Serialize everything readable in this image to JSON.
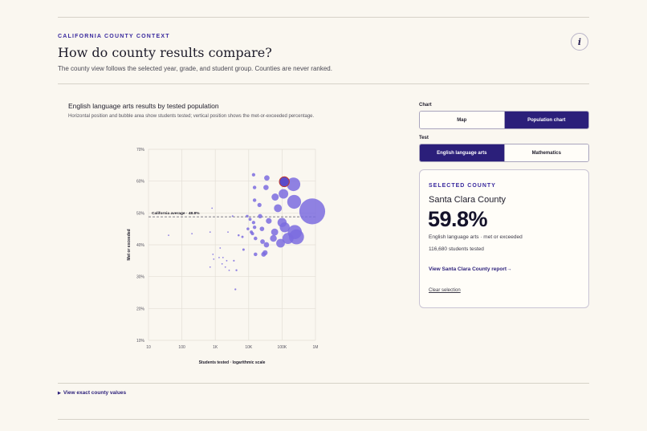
{
  "header": {
    "eyebrow": "CALIFORNIA COUNTY CONTEXT",
    "title": "How do county results compare?",
    "subtitle": "The county view follows the selected year, grade, and student group. Counties are never ranked.",
    "info_label": "i"
  },
  "chart_panel": {
    "title": "English language arts results by tested population",
    "description": "Horizontal position and bubble area show students tested; vertical position shows the met-or-exceeded percentage."
  },
  "controls": {
    "chart_label": "Chart",
    "chart_options": [
      "Map",
      "Population chart"
    ],
    "chart_selected": "Population chart",
    "test_label": "Test",
    "test_options": [
      "English language arts",
      "Mathematics"
    ],
    "test_selected": "English language arts"
  },
  "selected": {
    "eyebrow": "SELECTED COUNTY",
    "county": "Santa Clara County",
    "percent": "59.8%",
    "metric": "English language arts · met or exceeded",
    "tested": "116,680 students tested",
    "link": "View Santa Clara County report→",
    "clear": "Clear selection"
  },
  "details_toggle": "View exact county values",
  "colors": {
    "accent": "#2b1f7a",
    "bubble": "#7b6cdf",
    "background": "#faf7f0"
  },
  "chart_data": {
    "type": "scatter",
    "xlabel": "Students tested · logarithmic scale",
    "ylabel": "Met or exceeded",
    "x_scale": "log",
    "xlim": [
      10,
      1000000
    ],
    "ylim": [
      10,
      70
    ],
    "x_ticks": [
      "10",
      "100",
      "1K",
      "10K",
      "100K",
      "1M"
    ],
    "x_tick_values": [
      10,
      100,
      1000,
      10000,
      100000,
      1000000
    ],
    "y_ticks": [
      "10%",
      "20%",
      "30%",
      "40%",
      "50%",
      "60%",
      "70%"
    ],
    "y_tick_values": [
      10,
      20,
      30,
      40,
      50,
      60,
      70
    ],
    "grid": true,
    "average": {
      "value": 48.8,
      "label": "California average · 48.8%"
    },
    "selected_point": {
      "x": 116680,
      "y": 59.8
    },
    "points": [
      {
        "x": 40,
        "y": 43
      },
      {
        "x": 200,
        "y": 43.5
      },
      {
        "x": 700,
        "y": 44
      },
      {
        "x": 800,
        "y": 51.5
      },
      {
        "x": 700,
        "y": 33
      },
      {
        "x": 850,
        "y": 37
      },
      {
        "x": 900,
        "y": 35.5
      },
      {
        "x": 1400,
        "y": 39
      },
      {
        "x": 1300,
        "y": 36
      },
      {
        "x": 1700,
        "y": 36
      },
      {
        "x": 1600,
        "y": 34
      },
      {
        "x": 2000,
        "y": 33
      },
      {
        "x": 2200,
        "y": 35
      },
      {
        "x": 2600,
        "y": 32
      },
      {
        "x": 2400,
        "y": 44
      },
      {
        "x": 3300,
        "y": 49
      },
      {
        "x": 3600,
        "y": 35
      },
      {
        "x": 4300,
        "y": 32
      },
      {
        "x": 4000,
        "y": 26
      },
      {
        "x": 5000,
        "y": 43
      },
      {
        "x": 6500,
        "y": 42.5
      },
      {
        "x": 7000,
        "y": 38.5
      },
      {
        "x": 9000,
        "y": 49
      },
      {
        "x": 9500,
        "y": 45
      },
      {
        "x": 11000,
        "y": 48
      },
      {
        "x": 12000,
        "y": 44
      },
      {
        "x": 13000,
        "y": 43.5
      },
      {
        "x": 14000,
        "y": 47
      },
      {
        "x": 15000,
        "y": 45.5
      },
      {
        "x": 15000,
        "y": 54
      },
      {
        "x": 16000,
        "y": 42
      },
      {
        "x": 16000,
        "y": 37
      },
      {
        "x": 15000,
        "y": 58
      },
      {
        "x": 14000,
        "y": 62
      },
      {
        "x": 21000,
        "y": 52.5
      },
      {
        "x": 22000,
        "y": 49
      },
      {
        "x": 25000,
        "y": 45
      },
      {
        "x": 26000,
        "y": 41
      },
      {
        "x": 28000,
        "y": 37
      },
      {
        "x": 31000,
        "y": 37.5
      },
      {
        "x": 34000,
        "y": 40
      },
      {
        "x": 35000,
        "y": 61
      },
      {
        "x": 33000,
        "y": 58
      },
      {
        "x": 40000,
        "y": 47.5
      },
      {
        "x": 55000,
        "y": 42
      },
      {
        "x": 60000,
        "y": 44
      },
      {
        "x": 62000,
        "y": 55
      },
      {
        "x": 75000,
        "y": 51.5
      },
      {
        "x": 90000,
        "y": 40.5
      },
      {
        "x": 100000,
        "y": 47
      },
      {
        "x": 110000,
        "y": 56
      },
      {
        "x": 120000,
        "y": 45.5
      },
      {
        "x": 150000,
        "y": 42
      },
      {
        "x": 220000,
        "y": 59
      },
      {
        "x": 230000,
        "y": 53.5
      },
      {
        "x": 240000,
        "y": 44
      },
      {
        "x": 270000,
        "y": 42.5
      },
      {
        "x": 800000,
        "y": 50.5
      }
    ]
  }
}
